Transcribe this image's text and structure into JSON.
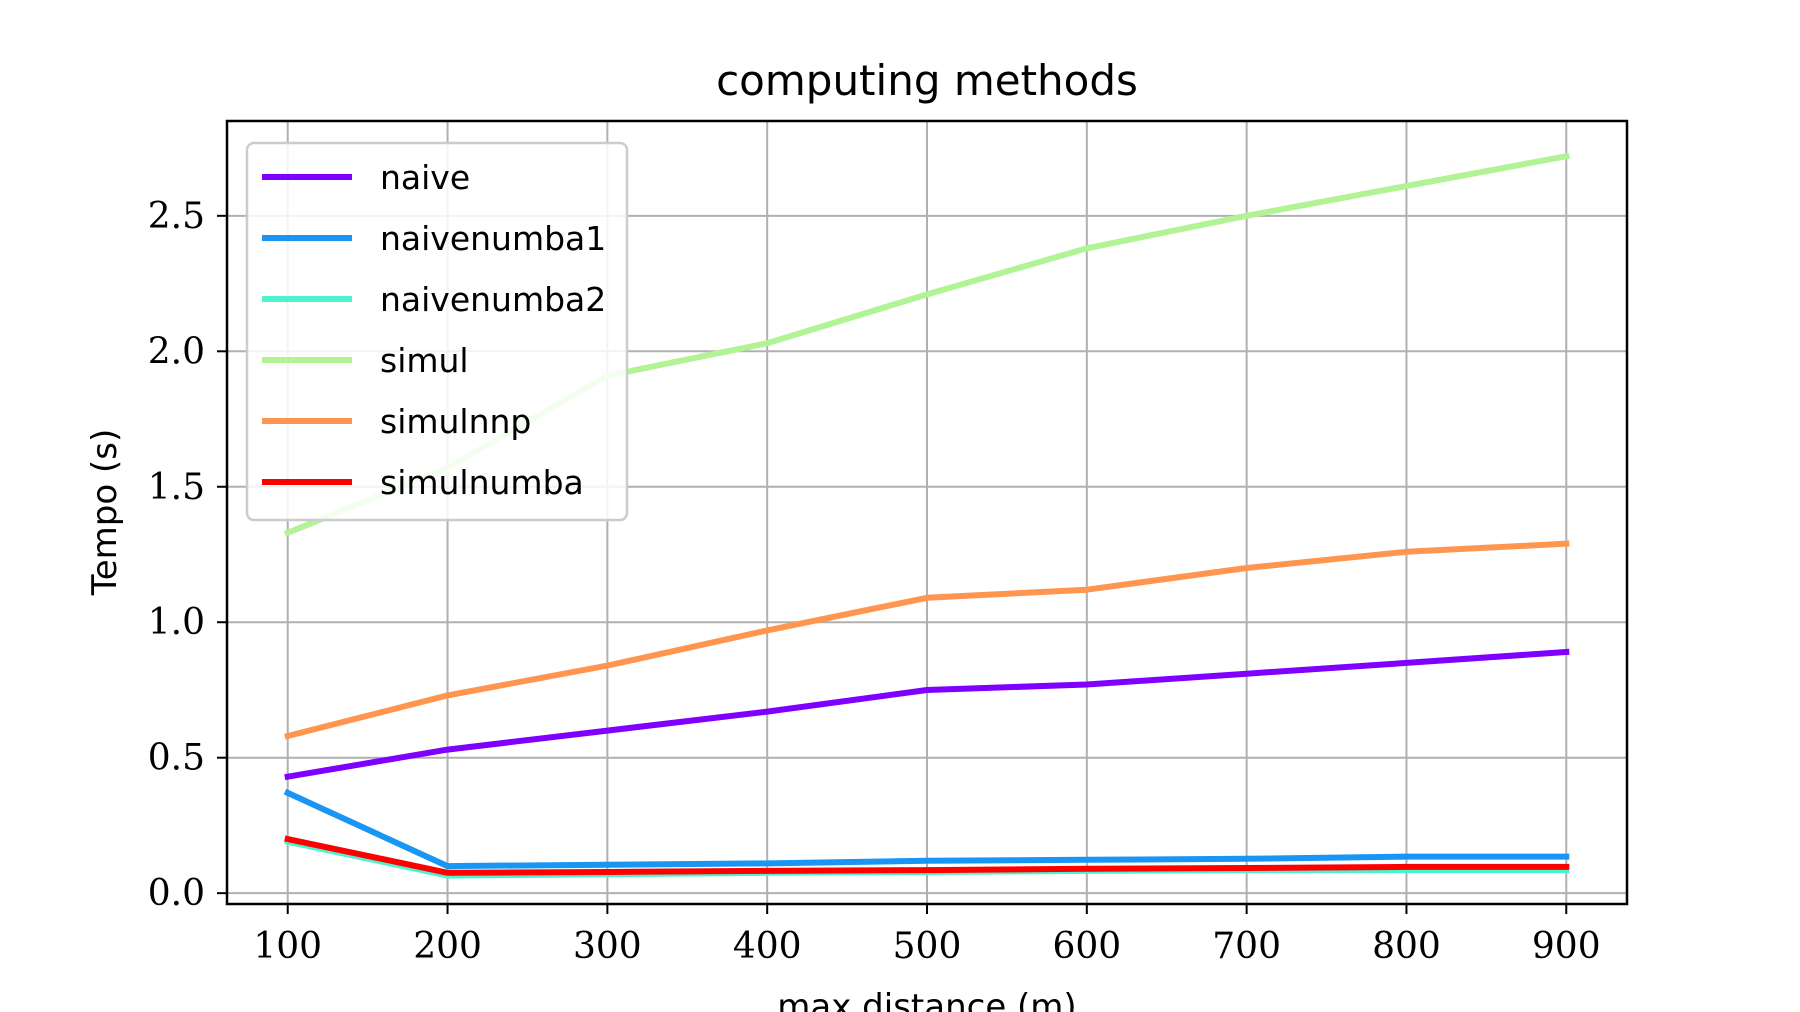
{
  "chart_data": {
    "type": "line",
    "title": "computing methods",
    "xlabel": "max distance (m)",
    "ylabel": "Tempo (s)",
    "x": [
      100,
      200,
      300,
      400,
      500,
      600,
      700,
      800,
      900
    ],
    "xlim": [
      62,
      938
    ],
    "ylim": [
      -0.04,
      2.85
    ],
    "xticks": [
      100,
      200,
      300,
      400,
      500,
      600,
      700,
      800,
      900
    ],
    "xtick_labels": [
      "100",
      "200",
      "300",
      "400",
      "500",
      "600",
      "700",
      "800",
      "900"
    ],
    "yticks": [
      0.0,
      0.5,
      1.0,
      1.5,
      2.0,
      2.5
    ],
    "ytick_labels": [
      "0.0",
      "0.5",
      "1.0",
      "1.5",
      "2.0",
      "2.5"
    ],
    "grid": true,
    "legend_position": "upper-left",
    "series": [
      {
        "name": "naive",
        "color": "#8000ff",
        "values": [
          0.43,
          0.53,
          0.6,
          0.67,
          0.75,
          0.77,
          0.81,
          0.85,
          0.89
        ]
      },
      {
        "name": "naivenumba1",
        "color": "#1996f3",
        "values": [
          0.37,
          0.1,
          0.105,
          0.11,
          0.12,
          0.123,
          0.127,
          0.135,
          0.135
        ]
      },
      {
        "name": "naivenumba2",
        "color": "#4df3ce",
        "values": [
          0.19,
          0.065,
          0.07,
          0.075,
          0.078,
          0.082,
          0.085,
          0.085,
          0.085
        ]
      },
      {
        "name": "simul",
        "color": "#b2f396",
        "values": [
          1.33,
          1.57,
          1.91,
          2.03,
          2.21,
          2.38,
          2.5,
          2.61,
          2.72
        ]
      },
      {
        "name": "simulnnp",
        "color": "#ff964f",
        "values": [
          0.58,
          0.73,
          0.84,
          0.97,
          1.09,
          1.12,
          1.2,
          1.26,
          1.29
        ]
      },
      {
        "name": "simulnumba",
        "color": "#ff0000",
        "values": [
          0.2,
          0.075,
          0.078,
          0.082,
          0.085,
          0.09,
          0.093,
          0.097,
          0.097
        ]
      }
    ]
  }
}
